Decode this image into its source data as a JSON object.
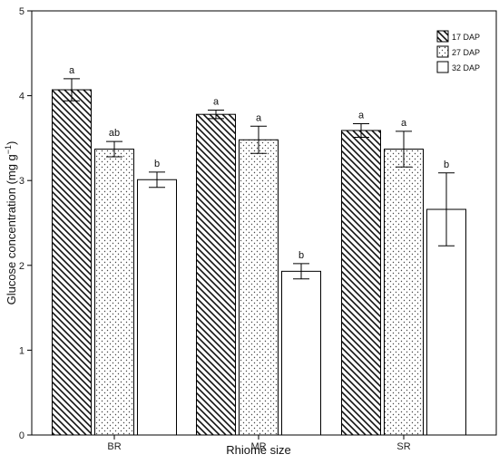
{
  "chart_data": {
    "type": "bar",
    "title": "",
    "xlabel": "Rhiome size",
    "ylabel_main": "Glucose concentration (mg g",
    "ylabel_sup": "−1",
    "ylabel_close": ")",
    "ylim": [
      0,
      5
    ],
    "yticks": [
      "0",
      "1",
      "2",
      "3",
      "4",
      "5"
    ],
    "categories": [
      "BR",
      "MR",
      "SR"
    ],
    "legend_position": "top-right",
    "series": [
      {
        "name": "17 DAP",
        "pattern": "diagonal-hatch",
        "values": [
          4.07,
          3.78,
          3.59
        ],
        "errors": [
          0.13,
          0.05,
          0.08
        ],
        "letters": [
          "a",
          "a",
          "a"
        ]
      },
      {
        "name": "27 DAP",
        "pattern": "dots",
        "values": [
          3.37,
          3.48,
          3.37
        ],
        "errors": [
          0.09,
          0.16,
          0.21
        ],
        "letters": [
          "ab",
          "a",
          "a"
        ]
      },
      {
        "name": "32 DAP",
        "pattern": "open",
        "values": [
          3.01,
          1.93,
          2.66
        ],
        "errors": [
          0.09,
          0.09,
          0.43
        ],
        "letters": [
          "b",
          "b",
          "b"
        ]
      }
    ]
  }
}
